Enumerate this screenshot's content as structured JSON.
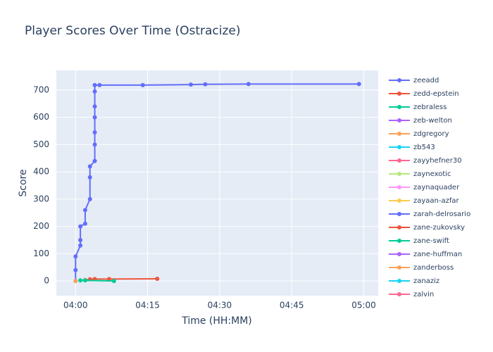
{
  "chart_data": {
    "type": "line",
    "title": "Player Scores Over Time (Ostracize)",
    "x_label": "Time (HH:MM)",
    "y_label": "Score",
    "xlim": [
      "03:56",
      "05:03"
    ],
    "xticks": [
      "04:00",
      "04:15",
      "04:30",
      "04:45",
      "05:00"
    ],
    "ylim": [
      -54,
      772
    ],
    "yticks": [
      0,
      100,
      200,
      300,
      400,
      500,
      600,
      700
    ],
    "grid": true,
    "series": [
      {
        "name": "zeeadd",
        "color": "#636efa",
        "x": [
          "04:00",
          "04:00",
          "04:00",
          "04:01",
          "04:01",
          "04:01",
          "04:02",
          "04:02",
          "04:03",
          "04:03",
          "04:03",
          "04:04",
          "04:04",
          "04:04",
          "04:04",
          "04:04",
          "04:04",
          "04:04",
          "04:05",
          "04:14",
          "04:24",
          "04:27",
          "04:36",
          "04:59"
        ],
        "values": [
          0,
          40,
          90,
          130,
          150,
          200,
          210,
          260,
          300,
          380,
          420,
          440,
          500,
          545,
          600,
          640,
          695,
          718,
          718,
          718,
          720,
          721,
          722,
          722
        ]
      },
      {
        "name": "zedd-epstein",
        "color": "#EF553B",
        "x": [
          "04:02",
          "04:03",
          "04:04",
          "04:07",
          "04:17"
        ],
        "values": [
          3,
          6,
          7,
          7,
          8
        ]
      },
      {
        "name": "zebraless",
        "color": "#00cc96",
        "x": [
          "04:01",
          "04:02",
          "04:08"
        ],
        "values": [
          2,
          2,
          0
        ]
      },
      {
        "name": "zeb-welton",
        "color": "#ab63fa",
        "x": [],
        "values": []
      },
      {
        "name": "zdgregory",
        "color": "#FFA15A",
        "x": [
          "04:00"
        ],
        "values": [
          0
        ]
      },
      {
        "name": "zb543",
        "color": "#19d3f3",
        "x": [],
        "values": []
      },
      {
        "name": "zayyhefner30",
        "color": "#FF6692",
        "x": [],
        "values": []
      },
      {
        "name": "zaynexotic",
        "color": "#B6E880",
        "x": [],
        "values": []
      },
      {
        "name": "zaynaquader",
        "color": "#FF97FF",
        "x": [],
        "values": []
      },
      {
        "name": "zayaan-azfar",
        "color": "#FECB52",
        "x": [],
        "values": []
      },
      {
        "name": "zarah-delrosario",
        "color": "#636efa",
        "x": [],
        "values": []
      },
      {
        "name": "zane-zukovsky",
        "color": "#EF553B",
        "x": [],
        "values": []
      },
      {
        "name": "zane-swift",
        "color": "#00cc96",
        "x": [],
        "values": []
      },
      {
        "name": "zane-huffman",
        "color": "#ab63fa",
        "x": [],
        "values": []
      },
      {
        "name": "zanderboss",
        "color": "#FFA15A",
        "x": [],
        "values": []
      },
      {
        "name": "zanaziz",
        "color": "#19d3f3",
        "x": [],
        "values": []
      },
      {
        "name": "zalvin",
        "color": "#FF6692",
        "x": [],
        "values": []
      }
    ]
  }
}
